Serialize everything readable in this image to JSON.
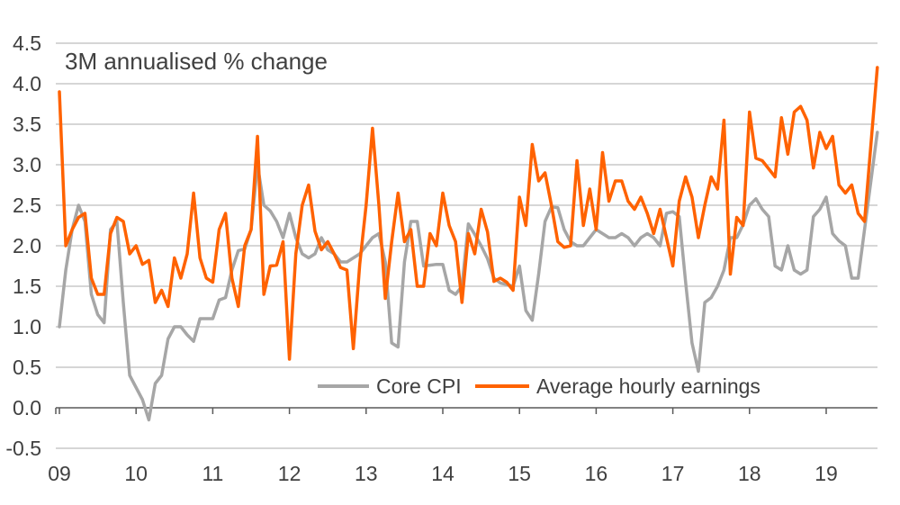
{
  "title": "3M annualised % change",
  "colors": {
    "core_cpi": "#A6A6A6",
    "avg_hourly_earnings": "#FF6200",
    "gridline": "#C9C9C9",
    "axis": "#595959",
    "text": "#404040",
    "background": "#FFFFFF"
  },
  "chart_data": {
    "type": "line",
    "title": "3M annualised % change",
    "xlabel": "",
    "ylabel": "",
    "x_start": "2009-01",
    "x_end": "2019-09",
    "x_freq": "monthly",
    "x_tick_labels": [
      "09",
      "10",
      "11",
      "12",
      "13",
      "14",
      "15",
      "16",
      "17",
      "18",
      "19"
    ],
    "ylim": [
      -0.5,
      4.5
    ],
    "y_tick_step": 0.5,
    "y_tick_labels": [
      "-0.5",
      "0.0",
      "0.5",
      "1.0",
      "1.5",
      "2.0",
      "2.5",
      "3.0",
      "3.5",
      "4.0",
      "4.5"
    ],
    "grid": "horizontal",
    "legend_position": "inside-bottom-center",
    "series": [
      {
        "name": "Core CPI",
        "color": "#A6A6A6",
        "values": [
          1.0,
          1.7,
          2.2,
          2.5,
          2.3,
          1.4,
          1.15,
          1.05,
          2.2,
          2.3,
          1.3,
          0.4,
          0.25,
          0.1,
          -0.15,
          0.3,
          0.4,
          0.85,
          1.0,
          1.0,
          0.9,
          0.82,
          1.1,
          1.1,
          1.1,
          1.33,
          1.36,
          1.7,
          1.94,
          1.96,
          2.2,
          3.0,
          2.5,
          2.43,
          2.3,
          2.1,
          2.4,
          2.1,
          1.9,
          1.85,
          1.9,
          2.1,
          1.95,
          1.9,
          1.8,
          1.8,
          1.85,
          1.9,
          2.0,
          2.1,
          2.15,
          1.8,
          0.8,
          0.75,
          1.8,
          2.3,
          2.3,
          1.75,
          1.76,
          1.77,
          1.77,
          1.45,
          1.4,
          1.5,
          2.27,
          2.14,
          2.0,
          1.84,
          1.6,
          1.54,
          1.52,
          1.5,
          1.75,
          1.2,
          1.08,
          1.65,
          2.3,
          2.48,
          2.47,
          2.2,
          2.05,
          2.0,
          2.0,
          2.1,
          2.2,
          2.15,
          2.1,
          2.1,
          2.15,
          2.1,
          2.0,
          2.1,
          2.15,
          2.1,
          2.0,
          2.4,
          2.42,
          2.36,
          1.55,
          0.8,
          0.45,
          1.3,
          1.36,
          1.5,
          1.7,
          2.1,
          2.1,
          2.26,
          2.5,
          2.58,
          2.45,
          2.36,
          1.75,
          1.7,
          2.0,
          1.7,
          1.65,
          1.7,
          2.36,
          2.45,
          2.6,
          2.15,
          2.06,
          2.0,
          1.6,
          1.6,
          2.2,
          2.8,
          3.4
        ]
      },
      {
        "name": "Average hourly earnings",
        "color": "#FF6200",
        "values": [
          3.9,
          2.0,
          2.2,
          2.35,
          2.4,
          1.6,
          1.4,
          1.4,
          2.15,
          2.35,
          2.3,
          1.9,
          2.0,
          1.77,
          1.82,
          1.3,
          1.45,
          1.25,
          1.85,
          1.6,
          1.9,
          2.65,
          1.85,
          1.6,
          1.55,
          2.2,
          2.4,
          1.6,
          1.25,
          2.0,
          2.2,
          3.35,
          1.4,
          1.75,
          1.76,
          2.05,
          0.6,
          1.9,
          2.5,
          2.75,
          2.18,
          1.95,
          2.05,
          1.9,
          1.73,
          1.7,
          0.73,
          1.77,
          2.5,
          3.45,
          2.5,
          1.35,
          2.05,
          2.65,
          2.05,
          2.2,
          1.5,
          1.5,
          2.15,
          2.0,
          2.65,
          2.25,
          2.05,
          1.3,
          2.15,
          1.9,
          2.45,
          2.17,
          1.56,
          1.6,
          1.55,
          1.45,
          2.6,
          2.25,
          3.25,
          2.8,
          2.9,
          2.5,
          2.05,
          1.98,
          2.0,
          3.05,
          2.25,
          2.7,
          2.2,
          3.15,
          2.55,
          2.8,
          2.8,
          2.55,
          2.45,
          2.6,
          2.4,
          2.15,
          2.45,
          2.1,
          1.75,
          2.55,
          2.85,
          2.6,
          2.1,
          2.5,
          2.85,
          2.7,
          3.55,
          1.65,
          2.35,
          2.25,
          3.65,
          3.08,
          3.05,
          2.95,
          2.85,
          3.58,
          3.13,
          3.65,
          3.72,
          3.55,
          2.96,
          3.4,
          3.2,
          3.35,
          2.75,
          2.65,
          2.75,
          2.4,
          2.3,
          3.25,
          4.2
        ]
      }
    ]
  },
  "legend": {
    "core_cpi_label": "Core CPI",
    "avg_hourly_earnings_label": "Average hourly earnings"
  }
}
